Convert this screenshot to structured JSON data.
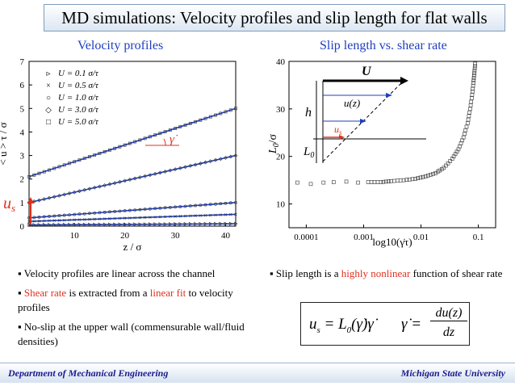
{
  "slide": {
    "title": "MD simulations: Velocity profiles and slip length for flat walls",
    "left_title": "Velocity profiles",
    "right_title": "Slip length vs. shear rate"
  },
  "left_plot": {
    "ylabel": "< u > τ / σ",
    "xlabel": "z / σ",
    "yticks": [
      "0",
      "1",
      "2",
      "3",
      "4",
      "5",
      "6",
      "7"
    ],
    "xticks": [
      "10",
      "20",
      "30",
      "40"
    ],
    "legend": [
      {
        "symbol": "▹",
        "label": "U = 0.1 σ/τ"
      },
      {
        "symbol": "×",
        "label": "U = 0.5 σ/τ"
      },
      {
        "symbol": "○",
        "label": "U = 1.0 σ/τ"
      },
      {
        "symbol": "◇",
        "label": "U = 3.0 σ/τ"
      },
      {
        "symbol": "□",
        "label": "U = 5.0 σ/τ"
      }
    ],
    "us_label": "u",
    "us_sub": "s",
    "gamma_label": "γ̇"
  },
  "right_plot": {
    "ylabel_main": "L",
    "ylabel_sub": "0",
    "ylabel_tail": "/σ",
    "xlabel": "log10(γ̇τ)",
    "yticks": [
      "10",
      "20",
      "30",
      "40"
    ],
    "xticks": [
      "0.0001",
      "0.001",
      "0.01",
      "0.1"
    ],
    "inset": {
      "U": "U",
      "h": "h",
      "uz": "u(z)",
      "us": "u",
      "us_sub": "s",
      "L0": "L",
      "L0_sub": "0"
    }
  },
  "chart_data": [
    {
      "type": "scatter",
      "title": "Velocity profiles",
      "xlabel": "z / σ",
      "ylabel": "< u > τ / σ",
      "xlim": [
        1,
        42
      ],
      "ylim": [
        0,
        7
      ],
      "series": [
        {
          "name": "U = 0.1 σ/τ",
          "x": [
            1,
            42
          ],
          "y": [
            0.05,
            0.1
          ],
          "marker": "triangle"
        },
        {
          "name": "U = 0.5 σ/τ",
          "x": [
            1,
            42
          ],
          "y": [
            0.2,
            0.5
          ],
          "marker": "x"
        },
        {
          "name": "U = 1.0 σ/τ",
          "x": [
            1,
            42
          ],
          "y": [
            0.35,
            1.0
          ],
          "marker": "circle"
        },
        {
          "name": "U = 3.0 σ/τ",
          "x": [
            1,
            42
          ],
          "y": [
            1.0,
            3.0
          ],
          "marker": "diamond"
        },
        {
          "name": "U = 5.0 σ/τ",
          "x": [
            1,
            42
          ],
          "y": [
            2.1,
            5.0
          ],
          "marker": "square"
        }
      ]
    },
    {
      "type": "scatter",
      "title": "Slip length vs. shear rate",
      "xlabel": "log10(γ̇τ)",
      "ylabel": "L0/σ",
      "xscale": "log",
      "xlim": [
        5e-05,
        0.2
      ],
      "ylim": [
        5,
        40
      ],
      "series": [
        {
          "name": "slip length",
          "x": [
            7e-05,
            0.00012,
            0.0002,
            0.0003,
            0.0005,
            0.0008,
            0.0012,
            0.002,
            0.003,
            0.005,
            0.008,
            0.012,
            0.018,
            0.025,
            0.035,
            0.045,
            0.055,
            0.065,
            0.072,
            0.078,
            0.082,
            0.085,
            0.088
          ],
          "y": [
            14.5,
            14.2,
            14.5,
            14.6,
            14.7,
            14.5,
            14.6,
            14.6,
            14.8,
            15.0,
            15.3,
            15.8,
            16.5,
            17.6,
            19.5,
            21.5,
            24,
            27,
            30,
            33,
            35.5,
            37.5,
            39.5
          ]
        }
      ]
    }
  ],
  "left_bullets": [
    {
      "parts": [
        {
          "t": "Velocity profiles are linear across the channel",
          "c": ""
        }
      ]
    },
    {
      "parts": [
        {
          "t": "Shear rate",
          "c": "red"
        },
        {
          "t": " is extracted from a ",
          "c": ""
        },
        {
          "t": "linear fit",
          "c": "red"
        },
        {
          "t": " to velocity profiles",
          "c": ""
        }
      ]
    },
    {
      "parts": [
        {
          "t": "No-slip at the upper wall (commensurable wall/fluid densities)",
          "c": ""
        }
      ]
    }
  ],
  "right_bullets": [
    {
      "parts": [
        {
          "t": "Slip length is a ",
          "c": ""
        },
        {
          "t": "highly nonlinear",
          "c": "red"
        },
        {
          "t": " function of shear rate",
          "c": ""
        }
      ]
    }
  ],
  "formula": {
    "lhs": "u",
    "lhs_sub": "s",
    "eq1": "= L",
    "L_sub": "0",
    "arg": "(γ̇)γ̇",
    "gamma": "γ̇ =",
    "num": "du(z)",
    "den": "dz"
  },
  "footer": {
    "left": "Department of Mechanical Engineering",
    "right": "Michigan State University"
  }
}
